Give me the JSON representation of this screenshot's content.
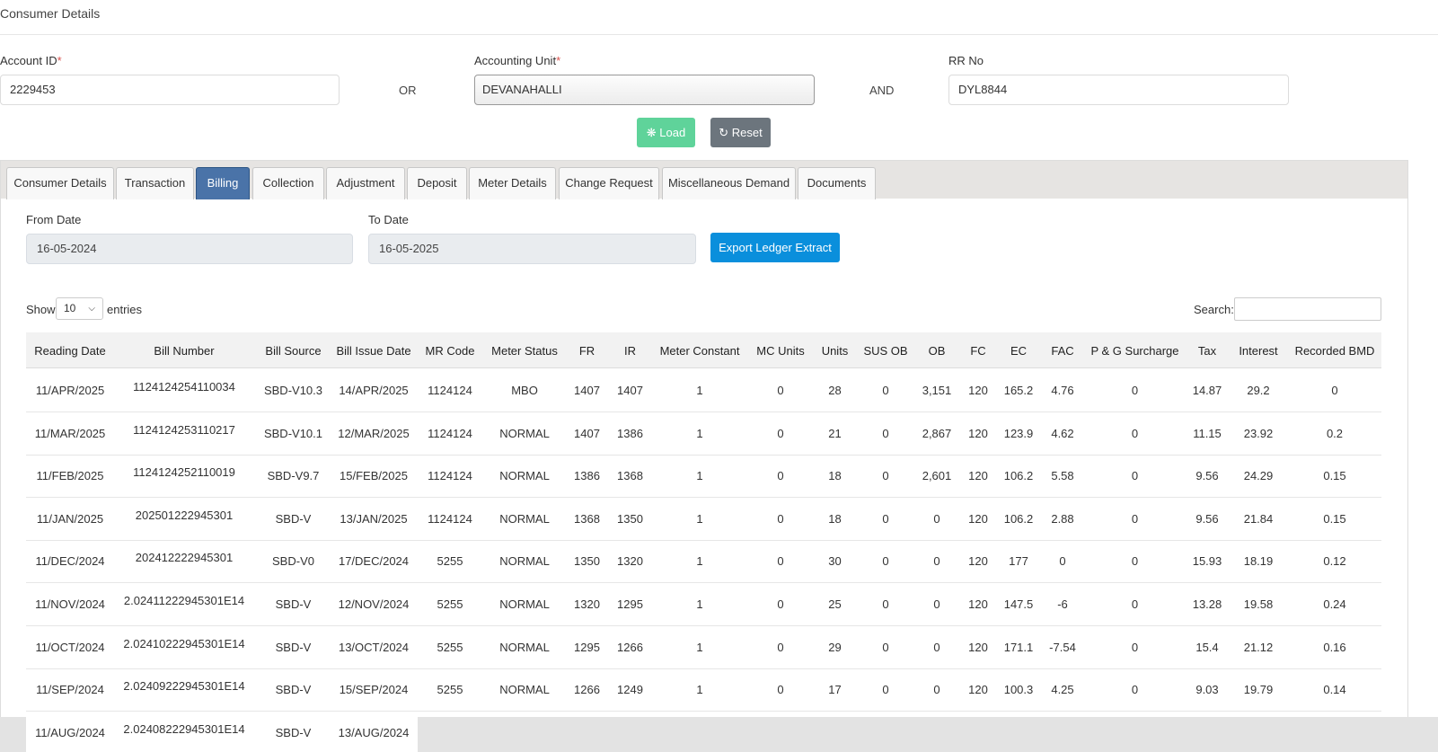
{
  "page": {
    "title": "Consumer Details"
  },
  "form": {
    "account_id_label": "Account ID",
    "account_id_value": "2229453",
    "or_label": "OR",
    "accounting_unit_label": "Accounting Unit",
    "accounting_unit_value": "DEVANAHALLI",
    "and_label": "AND",
    "rr_no_label": "RR No",
    "rr_no_value": "DYL8844",
    "required_mark": "*",
    "load_label": "Load",
    "reset_label": "Reset"
  },
  "tabs": [
    {
      "label": "Consumer Details"
    },
    {
      "label": "Transaction"
    },
    {
      "label": "Billing",
      "active": true
    },
    {
      "label": "Collection"
    },
    {
      "label": "Adjustment"
    },
    {
      "label": "Deposit"
    },
    {
      "label": "Meter Details"
    },
    {
      "label": "Change Request"
    },
    {
      "label": "Miscellaneous Demand"
    },
    {
      "label": "Documents"
    }
  ],
  "billing": {
    "from_date_label": "From Date",
    "from_date_value": "16-05-2024",
    "to_date_label": "To Date",
    "to_date_value": "16-05-2025",
    "export_label": "Export Ledger Extract",
    "show_label": "Show",
    "show_value": "10",
    "entries_label": "entries",
    "search_label": "Search:",
    "search_value": ""
  },
  "table": {
    "columns": [
      "Reading Date",
      "Bill Number",
      "Bill Source",
      "Bill Issue Date",
      "MR Code",
      "Meter Status",
      "FR",
      "IR",
      "Meter Constant",
      "MC Units",
      "Units",
      "SUS OB",
      "OB",
      "FC",
      "EC",
      "FAC",
      "P & G Surcharge",
      "Tax",
      "Interest",
      "Recorded BMD"
    ],
    "rows": [
      [
        "11/APR/2025",
        "1124124254110034",
        "SBD-V10.3",
        "14/APR/2025",
        "1124124",
        "MBO",
        "1407",
        "1407",
        "1",
        "0",
        "28",
        "0",
        "3,151",
        "120",
        "165.2",
        "4.76",
        "0",
        "14.87",
        "29.2",
        "0"
      ],
      [
        "11/MAR/2025",
        "1124124253110217",
        "SBD-V10.1",
        "12/MAR/2025",
        "1124124",
        "NORMAL",
        "1407",
        "1386",
        "1",
        "0",
        "21",
        "0",
        "2,867",
        "120",
        "123.9",
        "4.62",
        "0",
        "11.15",
        "23.92",
        "0.2"
      ],
      [
        "11/FEB/2025",
        "1124124252110019",
        "SBD-V9.7",
        "15/FEB/2025",
        "1124124",
        "NORMAL",
        "1386",
        "1368",
        "1",
        "0",
        "18",
        "0",
        "2,601",
        "120",
        "106.2",
        "5.58",
        "0",
        "9.56",
        "24.29",
        "0.15"
      ],
      [
        "11/JAN/2025",
        "202501222945301",
        "SBD-V",
        "13/JAN/2025",
        "1124124",
        "NORMAL",
        "1368",
        "1350",
        "1",
        "0",
        "18",
        "0",
        "0",
        "120",
        "106.2",
        "2.88",
        "0",
        "9.56",
        "21.84",
        "0.15"
      ],
      [
        "11/DEC/2024",
        "202412222945301",
        "SBD-V0",
        "17/DEC/2024",
        "5255",
        "NORMAL",
        "1350",
        "1320",
        "1",
        "0",
        "30",
        "0",
        "0",
        "120",
        "177",
        "0",
        "0",
        "15.93",
        "18.19",
        "0.12"
      ],
      [
        "11/NOV/2024",
        "2.02411222945301E14",
        "SBD-V",
        "12/NOV/2024",
        "5255",
        "NORMAL",
        "1320",
        "1295",
        "1",
        "0",
        "25",
        "0",
        "0",
        "120",
        "147.5",
        "-6",
        "0",
        "13.28",
        "19.58",
        "0.24"
      ],
      [
        "11/OCT/2024",
        "2.02410222945301E14",
        "SBD-V",
        "13/OCT/2024",
        "5255",
        "NORMAL",
        "1295",
        "1266",
        "1",
        "0",
        "29",
        "0",
        "0",
        "120",
        "171.1",
        "-7.54",
        "0",
        "15.4",
        "21.12",
        "0.16"
      ],
      [
        "11/SEP/2024",
        "2.02409222945301E14",
        "SBD-V",
        "15/SEP/2024",
        "5255",
        "NORMAL",
        "1266",
        "1249",
        "1",
        "0",
        "17",
        "0",
        "0",
        "120",
        "100.3",
        "4.25",
        "0",
        "9.03",
        "19.79",
        "0.14"
      ],
      [
        "11/AUG/2024",
        "2.02408222945301E14",
        "SBD-V",
        "13/AUG/2024",
        "",
        "",
        "",
        "",
        "",
        "",
        "",
        "",
        "",
        "",
        "",
        "",
        "",
        "",
        "",
        ""
      ]
    ]
  },
  "colors": {
    "load": "#5fd39a",
    "reset": "#6c757d",
    "export": "#0a8fdc",
    "active_tab": "#4a73a8"
  },
  "icons": {
    "load": "spinner-icon",
    "reset": "refresh-icon",
    "show": "chevron-down-icon"
  }
}
